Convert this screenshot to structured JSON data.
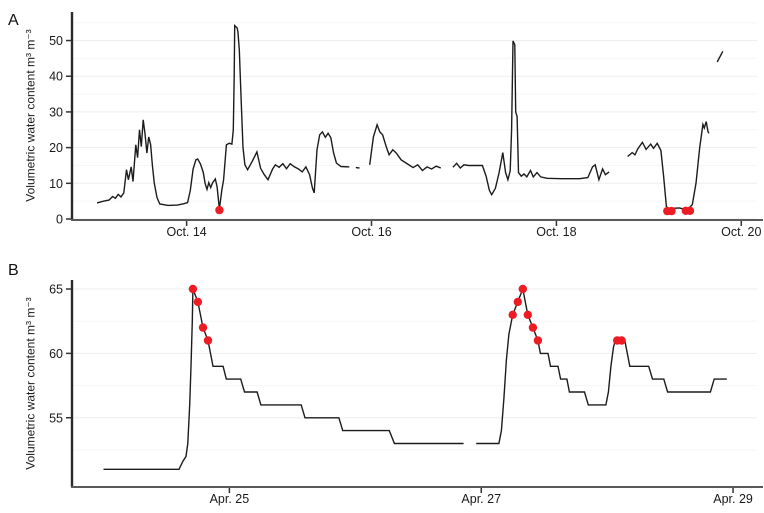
{
  "figure": {
    "background": "#ffffff",
    "line_color": "#1c1c1c",
    "marker_color": "#ed1c24",
    "axis_color": "#2b2b2b",
    "tick_color": "#333333",
    "gridline_major_color": "#ededed",
    "gridline_minor_color": "#f6f6f6"
  },
  "chart_data": [
    {
      "panel_label": "A",
      "type": "line",
      "ylabel": "Volumetric water content m³ m⁻³",
      "xlabel": "",
      "xlim": [
        12.76,
        20.17
      ],
      "ylim": [
        0,
        58
      ],
      "grid": "faint horizontal",
      "legend": "none",
      "x_ticks": [
        {
          "value": 14,
          "label": "Oct. 14"
        },
        {
          "value": 16,
          "label": "Oct. 16"
        },
        {
          "value": 18,
          "label": "Oct. 18"
        },
        {
          "value": 20,
          "label": "Oct. 20"
        }
      ],
      "y_ticks": [
        {
          "value": 0,
          "label": "0"
        },
        {
          "value": 10,
          "label": "10"
        },
        {
          "value": 20,
          "label": "20"
        },
        {
          "value": 30,
          "label": "30"
        },
        {
          "value": 40,
          "label": "40"
        },
        {
          "value": 50,
          "label": "50"
        }
      ],
      "segments": [
        [
          [
            13.03,
            4.5
          ],
          [
            13.1,
            5.0
          ],
          [
            13.16,
            5.3
          ],
          [
            13.2,
            6.3
          ],
          [
            13.23,
            5.8
          ],
          [
            13.26,
            6.9
          ],
          [
            13.29,
            6.2
          ],
          [
            13.32,
            7.3
          ],
          [
            13.35,
            13.8
          ],
          [
            13.37,
            11.0
          ],
          [
            13.4,
            14.6
          ],
          [
            13.42,
            10.5
          ],
          [
            13.45,
            20.8
          ],
          [
            13.47,
            17.2
          ],
          [
            13.49,
            25.0
          ],
          [
            13.51,
            20.3
          ],
          [
            13.53,
            27.8
          ],
          [
            13.55,
            23.9
          ],
          [
            13.57,
            18.5
          ],
          [
            13.59,
            23.0
          ],
          [
            13.61,
            20.9
          ],
          [
            13.63,
            15.0
          ],
          [
            13.65,
            10.0
          ],
          [
            13.68,
            6.0
          ],
          [
            13.71,
            4.2
          ],
          [
            13.8,
            3.8
          ],
          [
            13.9,
            3.9
          ],
          [
            13.97,
            4.3
          ],
          [
            14.01,
            4.6
          ],
          [
            14.04,
            8.0
          ],
          [
            14.07,
            14.0
          ],
          [
            14.1,
            16.6
          ],
          [
            14.12,
            16.8
          ],
          [
            14.15,
            15.4
          ],
          [
            14.18,
            13.0
          ],
          [
            14.2,
            10.0
          ],
          [
            14.22,
            8.3
          ],
          [
            14.24,
            10.2
          ],
          [
            14.26,
            8.8
          ],
          [
            14.28,
            10.1
          ],
          [
            14.31,
            11.2
          ],
          [
            14.33,
            9.0
          ],
          [
            14.355,
            2.8
          ],
          [
            14.38,
            8.0
          ],
          [
            14.4,
            11.0
          ],
          [
            14.43,
            20.8
          ],
          [
            14.46,
            21.2
          ],
          [
            14.49,
            21.0
          ],
          [
            14.505,
            25.0
          ],
          [
            14.515,
            40.0
          ],
          [
            14.52,
            54.2
          ],
          [
            14.545,
            53.6
          ],
          [
            14.555,
            52.5
          ],
          [
            14.57,
            47.5
          ],
          [
            14.59,
            33.0
          ],
          [
            14.61,
            20.0
          ],
          [
            14.63,
            15.2
          ],
          [
            14.66,
            13.8
          ],
          [
            14.71,
            16.2
          ],
          [
            14.76,
            18.8
          ],
          [
            14.8,
            14.2
          ],
          [
            14.84,
            12.4
          ],
          [
            14.88,
            11.0
          ],
          [
            14.93,
            14.0
          ],
          [
            14.96,
            15.2
          ],
          [
            15.0,
            14.5
          ],
          [
            15.04,
            15.5
          ],
          [
            15.08,
            14.1
          ],
          [
            15.12,
            15.5
          ],
          [
            15.16,
            14.7
          ],
          [
            15.21,
            14.0
          ],
          [
            15.25,
            13.2
          ],
          [
            15.29,
            14.6
          ],
          [
            15.33,
            12.4
          ],
          [
            15.36,
            8.7
          ],
          [
            15.38,
            7.3
          ],
          [
            15.41,
            19.4
          ],
          [
            15.44,
            23.6
          ],
          [
            15.47,
            24.4
          ],
          [
            15.5,
            22.9
          ],
          [
            15.53,
            24.0
          ],
          [
            15.56,
            22.8
          ],
          [
            15.59,
            18.5
          ],
          [
            15.62,
            15.7
          ],
          [
            15.67,
            14.7
          ],
          [
            15.76,
            14.6
          ]
        ],
        [
          [
            15.83,
            14.4
          ],
          [
            15.87,
            14.3
          ]
        ],
        [
          [
            15.98,
            15.2
          ],
          [
            16.02,
            23.0
          ],
          [
            16.06,
            26.4
          ],
          [
            16.09,
            24.4
          ],
          [
            16.12,
            23.6
          ],
          [
            16.16,
            20.2
          ],
          [
            16.19,
            18.0
          ],
          [
            16.23,
            19.4
          ],
          [
            16.27,
            18.4
          ],
          [
            16.32,
            16.6
          ],
          [
            16.39,
            15.4
          ],
          [
            16.45,
            14.4
          ],
          [
            16.5,
            15.2
          ],
          [
            16.55,
            13.6
          ],
          [
            16.6,
            14.6
          ],
          [
            16.65,
            14.0
          ],
          [
            16.7,
            14.8
          ],
          [
            16.75,
            14.3
          ]
        ],
        [
          [
            16.88,
            14.5
          ],
          [
            16.92,
            15.6
          ],
          [
            16.96,
            14.3
          ],
          [
            17.0,
            15.2
          ],
          [
            17.05,
            15.0
          ],
          [
            17.2,
            15.0
          ],
          [
            17.24,
            12.0
          ],
          [
            17.275,
            8.0
          ],
          [
            17.3,
            6.8
          ],
          [
            17.34,
            8.6
          ],
          [
            17.38,
            13.0
          ],
          [
            17.42,
            18.6
          ],
          [
            17.45,
            13.0
          ],
          [
            17.475,
            11.0
          ],
          [
            17.5,
            13.5
          ],
          [
            17.515,
            25.0
          ],
          [
            17.53,
            49.9
          ],
          [
            17.55,
            48.8
          ],
          [
            17.56,
            30.0
          ],
          [
            17.575,
            28.7
          ],
          [
            17.59,
            13.0
          ],
          [
            17.62,
            12.0
          ],
          [
            17.65,
            12.6
          ],
          [
            17.68,
            11.8
          ],
          [
            17.72,
            13.6
          ],
          [
            17.75,
            11.8
          ],
          [
            17.79,
            13.0
          ],
          [
            17.83,
            11.8
          ],
          [
            17.9,
            11.4
          ],
          [
            18.05,
            11.3
          ],
          [
            18.25,
            11.3
          ],
          [
            18.34,
            11.6
          ],
          [
            18.39,
            14.6
          ],
          [
            18.42,
            15.2
          ],
          [
            18.46,
            11.0
          ],
          [
            18.5,
            14.0
          ],
          [
            18.53,
            12.4
          ],
          [
            18.57,
            13.2
          ]
        ],
        [
          [
            18.77,
            17.5
          ],
          [
            18.82,
            18.6
          ],
          [
            18.85,
            18.0
          ],
          [
            18.88,
            19.6
          ],
          [
            18.93,
            21.5
          ],
          [
            18.97,
            19.5
          ],
          [
            19.02,
            21.0
          ],
          [
            19.05,
            19.8
          ],
          [
            19.09,
            21.2
          ],
          [
            19.13,
            19.2
          ],
          [
            19.16,
            12.0
          ],
          [
            19.19,
            3.5
          ],
          [
            19.22,
            2.8
          ],
          [
            19.26,
            3.0
          ],
          [
            19.33,
            3.1
          ],
          [
            19.38,
            2.8
          ],
          [
            19.43,
            3.0
          ],
          [
            19.47,
            4.0
          ],
          [
            19.51,
            10.0
          ],
          [
            19.55,
            20.0
          ],
          [
            19.585,
            26.5
          ],
          [
            19.6,
            25.5
          ],
          [
            19.62,
            27.3
          ],
          [
            19.64,
            24.5
          ],
          [
            19.65,
            24.0
          ]
        ],
        [
          [
            19.74,
            44.0
          ],
          [
            19.8,
            47.0
          ]
        ]
      ],
      "red_points": [
        [
          14.355,
          2.5
        ],
        [
          19.2,
          2.2
        ],
        [
          19.245,
          2.2
        ],
        [
          19.4,
          2.3
        ],
        [
          19.445,
          2.3
        ]
      ]
    },
    {
      "panel_label": "B",
      "type": "line",
      "ylabel": "Volumetric water content m³ m⁻³",
      "xlabel": "",
      "xlim": [
        23.75,
        29.19
      ],
      "ylim": [
        49.7,
        65.7
      ],
      "grid": "faint horizontal",
      "legend": "none",
      "x_ticks": [
        {
          "value": 25,
          "label": "Apr. 25"
        },
        {
          "value": 27,
          "label": "Apr. 27"
        },
        {
          "value": 29,
          "label": "Apr. 29"
        }
      ],
      "y_ticks": [
        {
          "value": 55,
          "label": "55"
        },
        {
          "value": 60,
          "label": "60"
        },
        {
          "value": 65,
          "label": "65"
        }
      ],
      "segments": [
        [
          [
            24.0,
            51.0
          ],
          [
            24.6,
            51.0
          ],
          [
            24.63,
            51.6
          ],
          [
            24.655,
            52.0
          ],
          [
            24.67,
            53.0
          ],
          [
            24.685,
            56.0
          ],
          [
            24.695,
            59.0
          ],
          [
            24.705,
            62.5
          ],
          [
            24.71,
            65.0
          ],
          [
            24.75,
            64.0
          ],
          [
            24.79,
            62.0
          ],
          [
            24.83,
            61.0
          ],
          [
            24.85,
            60.0
          ],
          [
            24.87,
            59.0
          ],
          [
            24.95,
            59.0
          ],
          [
            24.975,
            58.0
          ],
          [
            25.09,
            58.0
          ],
          [
            25.12,
            57.0
          ],
          [
            25.22,
            57.0
          ],
          [
            25.25,
            56.0
          ],
          [
            25.57,
            56.0
          ],
          [
            25.6,
            55.0
          ],
          [
            25.87,
            55.0
          ],
          [
            25.9,
            54.0
          ],
          [
            26.27,
            54.0
          ],
          [
            26.31,
            53.0
          ],
          [
            26.86,
            53.0
          ]
        ],
        [
          [
            26.96,
            53.0
          ],
          [
            27.14,
            53.0
          ],
          [
            27.16,
            54.0
          ],
          [
            27.18,
            56.5
          ],
          [
            27.2,
            59.5
          ],
          [
            27.22,
            61.5
          ],
          [
            27.25,
            63.0
          ],
          [
            27.29,
            64.0
          ],
          [
            27.33,
            65.0
          ],
          [
            27.37,
            63.0
          ],
          [
            27.41,
            62.0
          ],
          [
            27.45,
            61.0
          ],
          [
            27.47,
            60.0
          ],
          [
            27.53,
            60.0
          ],
          [
            27.55,
            59.0
          ],
          [
            27.61,
            59.0
          ],
          [
            27.63,
            58.0
          ],
          [
            27.68,
            58.0
          ],
          [
            27.7,
            57.0
          ],
          [
            27.82,
            57.0
          ],
          [
            27.85,
            56.0
          ],
          [
            27.99,
            56.0
          ],
          [
            28.01,
            57.0
          ],
          [
            28.03,
            59.0
          ],
          [
            28.05,
            60.5
          ],
          [
            28.065,
            61.0
          ],
          [
            28.14,
            61.0
          ],
          [
            28.16,
            60.0
          ],
          [
            28.18,
            59.0
          ],
          [
            28.33,
            59.0
          ],
          [
            28.36,
            58.0
          ],
          [
            28.45,
            58.0
          ],
          [
            28.48,
            57.0
          ],
          [
            28.82,
            57.0
          ],
          [
            28.85,
            58.0
          ],
          [
            28.95,
            58.0
          ]
        ]
      ],
      "red_points": [
        [
          24.71,
          65
        ],
        [
          24.75,
          64
        ],
        [
          24.79,
          62
        ],
        [
          24.83,
          61
        ],
        [
          27.25,
          63
        ],
        [
          27.29,
          64
        ],
        [
          27.33,
          65
        ],
        [
          27.37,
          63
        ],
        [
          27.41,
          62
        ],
        [
          27.45,
          61
        ],
        [
          28.08,
          61
        ],
        [
          28.115,
          61
        ]
      ]
    }
  ]
}
